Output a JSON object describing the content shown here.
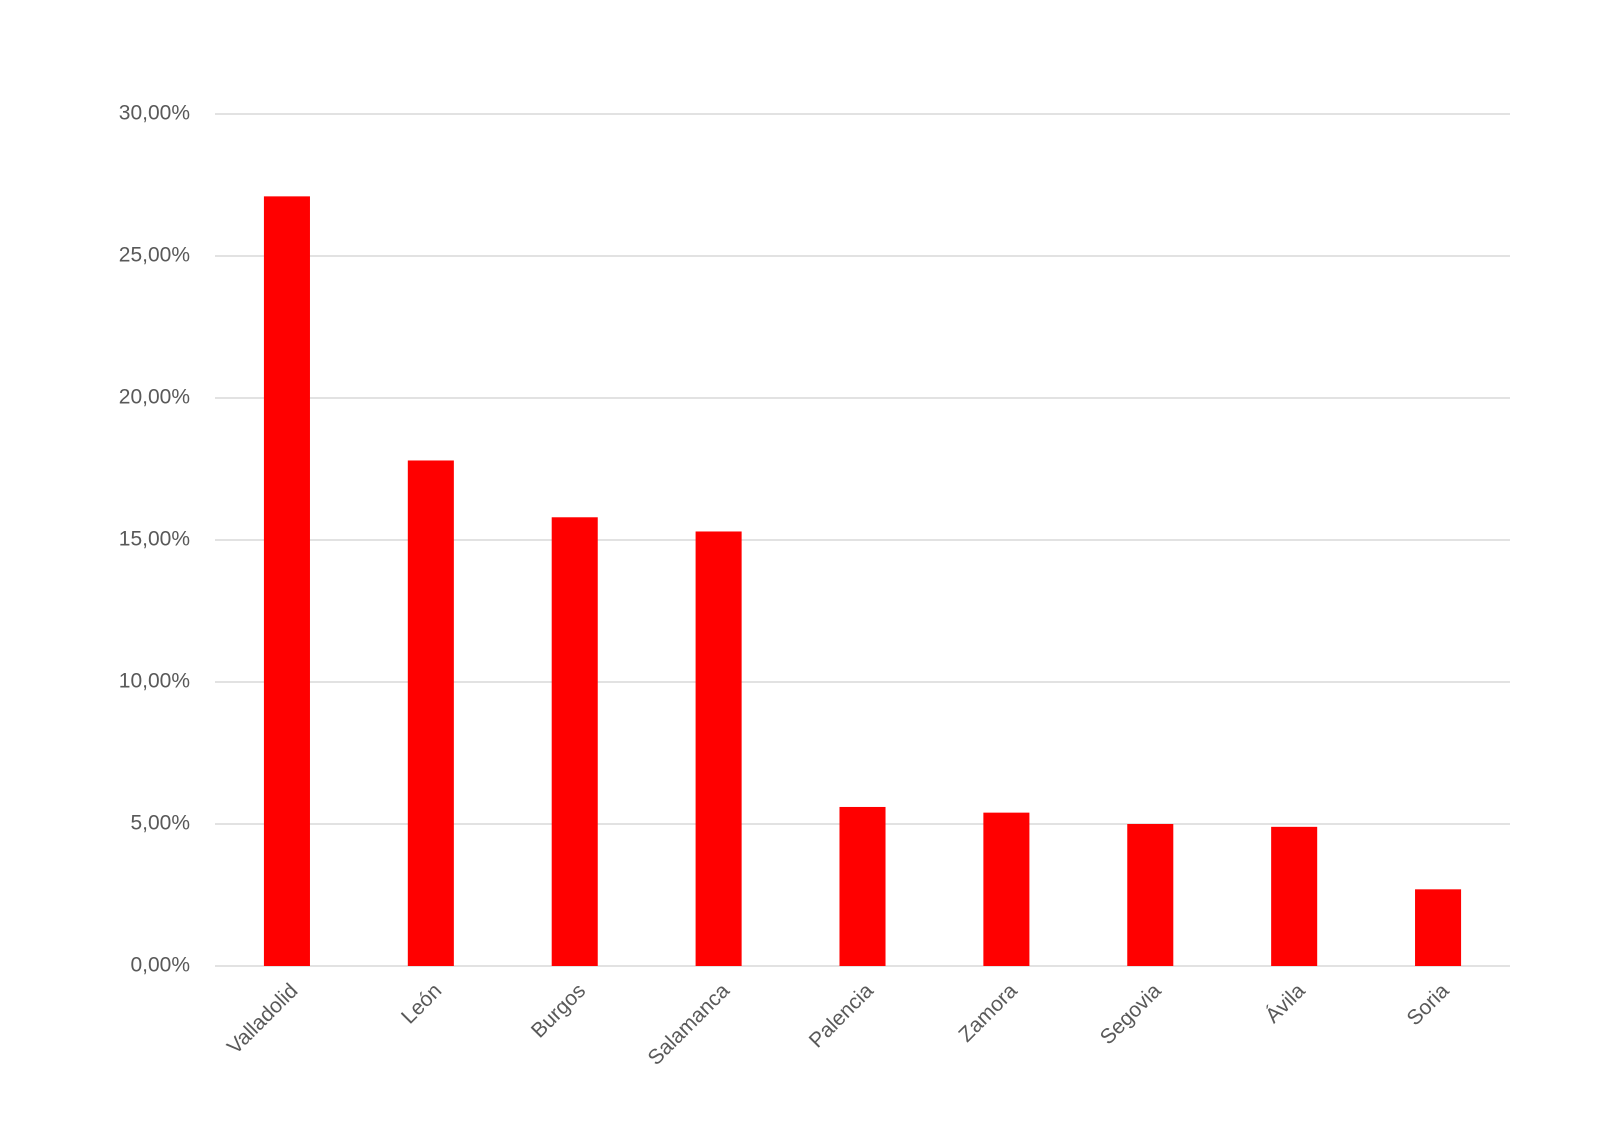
{
  "chart_data": {
    "type": "bar",
    "categories": [
      "Valladolid",
      "León",
      "Burgos",
      "Salamanca",
      "Palencia",
      "Zamora",
      "Segovia",
      "Ávila",
      "Soria"
    ],
    "values": [
      27.1,
      17.8,
      15.8,
      15.3,
      5.6,
      5.4,
      5.0,
      4.9,
      2.7
    ],
    "color": "#ff0000",
    "ylim": [
      0,
      30
    ],
    "yticks": [
      {
        "value": 0,
        "label": "0,00%"
      },
      {
        "value": 5,
        "label": "5,00%"
      },
      {
        "value": 10,
        "label": "10,00%"
      },
      {
        "value": 15,
        "label": "15,00%"
      },
      {
        "value": 20,
        "label": "20,00%"
      },
      {
        "value": 25,
        "label": "25,00%"
      },
      {
        "value": 30,
        "label": "30,00%"
      }
    ],
    "grid": true
  }
}
